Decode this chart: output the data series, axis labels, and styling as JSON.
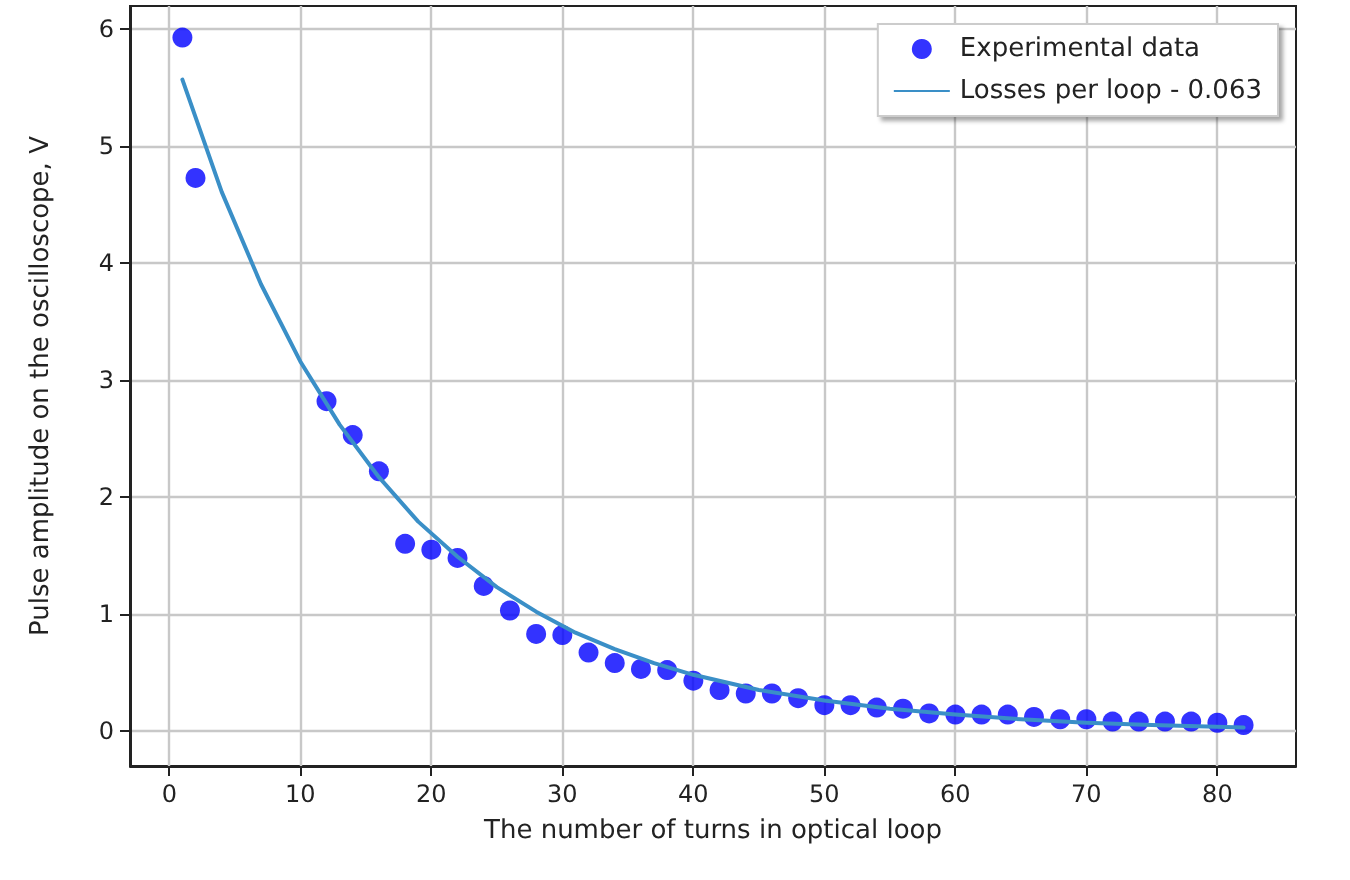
{
  "chart_data": {
    "type": "scatter",
    "xlabel": "The number of turns in optical loop",
    "ylabel": "Pulse amplitude on the oscilloscope, V",
    "xlim": [
      -3,
      86
    ],
    "ylim": [
      -0.3,
      6.2
    ],
    "xticks": [
      0,
      10,
      20,
      30,
      40,
      50,
      60,
      70,
      80
    ],
    "yticks": [
      0,
      1,
      2,
      3,
      4,
      5,
      6
    ],
    "grid": true,
    "legend": "top right",
    "series": [
      {
        "name": "Experimental data",
        "color": "#0000ff",
        "marker": "circle",
        "x": [
          1,
          2,
          12,
          14,
          16,
          18,
          20,
          22,
          24,
          26,
          28,
          30,
          32,
          34,
          36,
          38,
          40,
          42,
          44,
          46,
          48,
          50,
          52,
          54,
          56,
          58,
          60,
          62,
          64,
          66,
          68,
          70,
          72,
          74,
          76,
          78,
          80,
          82
        ],
        "values": [
          5.93,
          4.73,
          2.82,
          2.53,
          2.22,
          1.6,
          1.55,
          1.48,
          1.24,
          1.03,
          0.83,
          0.82,
          0.67,
          0.58,
          0.53,
          0.52,
          0.43,
          0.35,
          0.32,
          0.32,
          0.28,
          0.22,
          0.22,
          0.2,
          0.19,
          0.15,
          0.14,
          0.14,
          0.14,
          0.12,
          0.1,
          0.1,
          0.08,
          0.08,
          0.08,
          0.08,
          0.07,
          0.05
        ]
      },
      {
        "name": "Losses per loop - 0.063",
        "type": "line",
        "color": "#3a8fc7",
        "marker": "none",
        "line_style": "solid",
        "x": [
          1,
          4,
          7,
          10,
          13,
          16,
          19,
          22,
          25,
          28,
          31,
          34,
          37,
          40,
          45,
          50,
          55,
          60,
          65,
          70,
          75,
          82
        ],
        "values": [
          5.57,
          4.61,
          3.82,
          3.16,
          2.62,
          2.17,
          1.79,
          1.49,
          1.23,
          1.02,
          0.84,
          0.7,
          0.58,
          0.48,
          0.35,
          0.26,
          0.19,
          0.14,
          0.1,
          0.07,
          0.05,
          0.03
        ]
      }
    ]
  }
}
